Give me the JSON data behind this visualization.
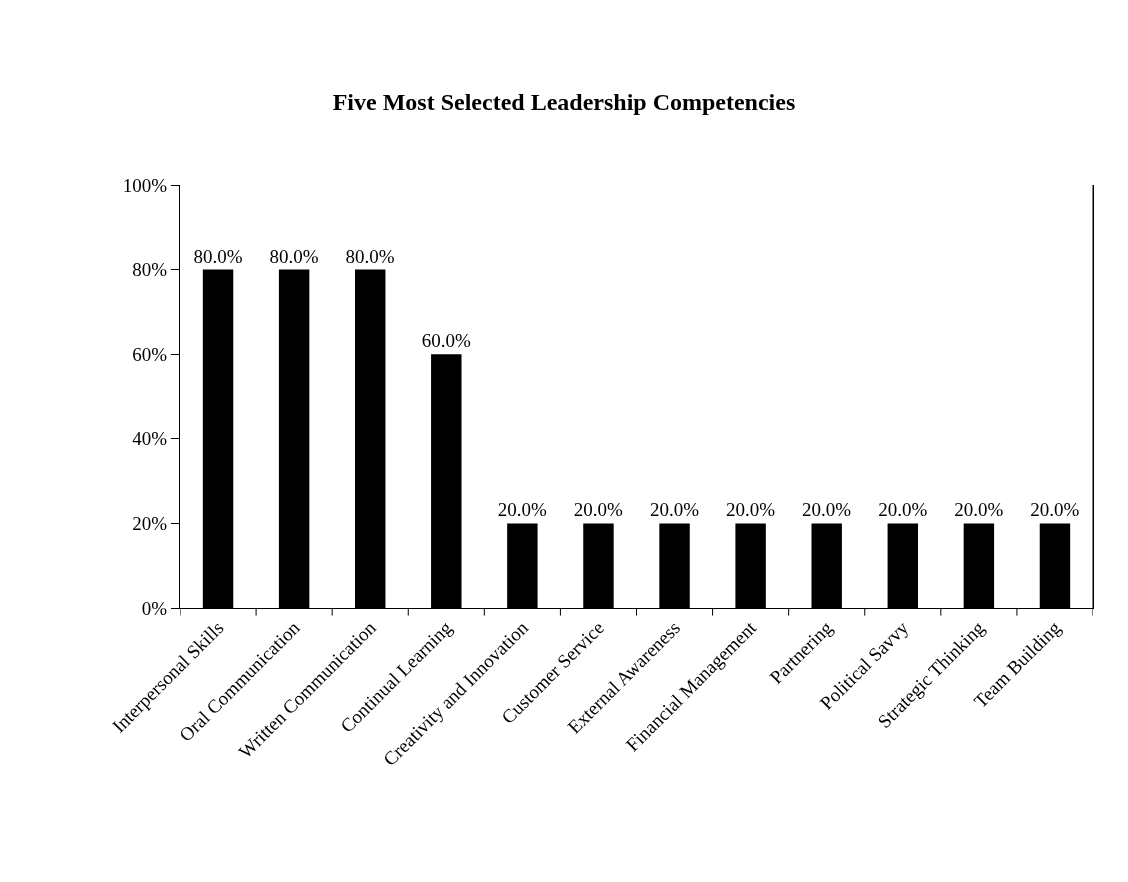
{
  "chart_data": {
    "type": "bar",
    "title": "Five Most Selected Leadership Competencies",
    "categories": [
      "Interpersonal Skills",
      "Oral Communication",
      "Written Communication",
      "Continual Learning",
      "Creativity and Innovation",
      "Customer Service",
      "External Awareness",
      "Financial Management",
      "Partnering",
      "Political Savvy",
      "Strategic Thinking",
      "Team Building"
    ],
    "values": [
      80,
      80,
      80,
      60,
      20,
      20,
      20,
      20,
      20,
      20,
      20,
      20
    ],
    "value_labels": [
      "80.0%",
      "80.0%",
      "80.0%",
      "60.0%",
      "20.0%",
      "20.0%",
      "20.0%",
      "20.0%",
      "20.0%",
      "20.0%",
      "20.0%",
      "20.0%"
    ],
    "color": "#000000",
    "ylim": [
      0,
      100
    ],
    "yticks": [
      {
        "value": 0,
        "label": "0%"
      },
      {
        "value": 20,
        "label": "20%"
      },
      {
        "value": 40,
        "label": "40%"
      },
      {
        "value": 60,
        "label": "60%"
      },
      {
        "value": 80,
        "label": "80%"
      },
      {
        "value": 100,
        "label": "100%"
      }
    ],
    "legend": false
  }
}
